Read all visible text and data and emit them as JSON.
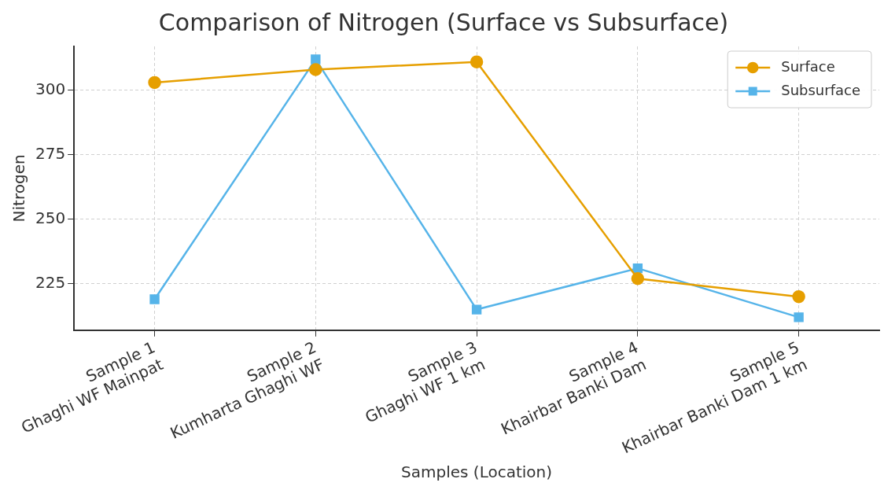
{
  "chart_data": {
    "type": "line",
    "title": "Comparison of Nitrogen (Surface vs Subsurface)",
    "xlabel": "Samples (Location)",
    "ylabel": "Nitrogen",
    "categories": [
      "Sample 1\nGhaghi WF Mainpat",
      "Sample 2\nKumharta Ghaghi WF",
      "Sample 3\nGhaghi WF 1 km",
      "Sample 4\nKhairbar Banki Dam",
      "Sample 5\nKhairbar Banki Dam 1 km"
    ],
    "series": [
      {
        "name": "Surface",
        "color": "#e69f00",
        "marker": "circle",
        "values": [
          303,
          308,
          311,
          227,
          220
        ]
      },
      {
        "name": "Subsurface",
        "color": "#56b4e9",
        "marker": "square",
        "values": [
          219,
          312,
          215,
          231,
          212
        ]
      }
    ],
    "ylim": [
      207,
      317
    ],
    "yticks": [
      225,
      250,
      275,
      300
    ],
    "grid": true,
    "legend": "top right",
    "line_style": "solid"
  }
}
